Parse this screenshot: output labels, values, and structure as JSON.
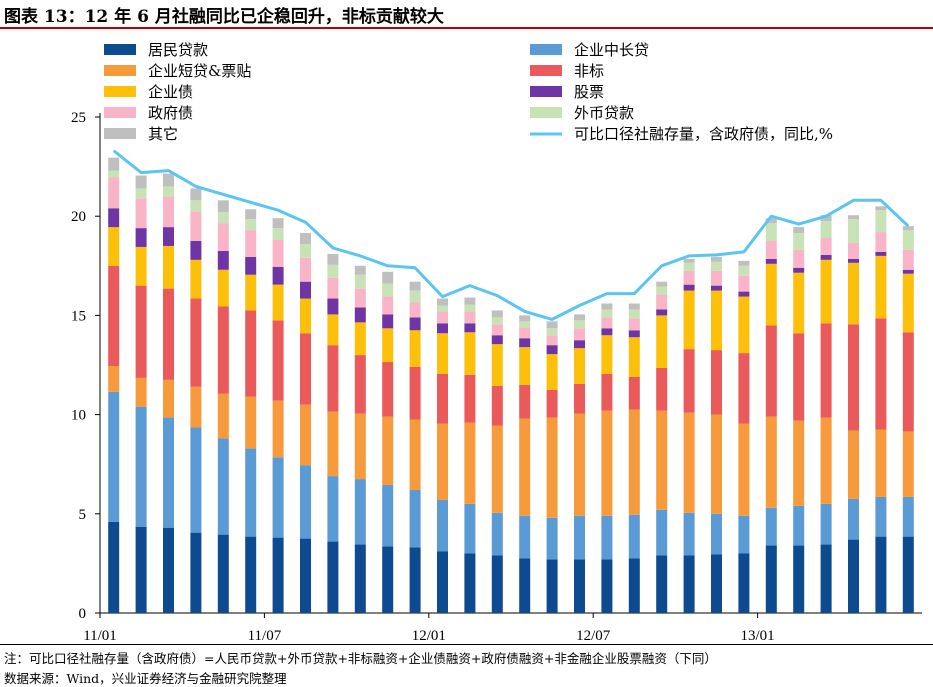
{
  "title": "图表 13：12 年 6 月社融同比已企稳回升，非标贡献较大",
  "footnote": "注：可比口径社融存量（含政府债）=人民币贷款+外币贷款+非标融资+企业债融资+政府债融资+非金融企业股票融资（下同）",
  "source": "数据来源：Wind，兴业证券经济与金融研究院整理",
  "colors": {
    "居民贷款": "#0d4a8f",
    "企业中长贷": "#5b9bd5",
    "企业短贷&票贴": "#f79a3b",
    "非标": "#eb5a5a",
    "企业债": "#fcbf0a",
    "股票": "#6f35a5",
    "政府债": "#f9b4c8",
    "外币贷款": "#c7e3b5",
    "其它": "#bfbfbf",
    "line": "#5bc5f2"
  },
  "chart_data": {
    "type": "bar",
    "stacked": true,
    "categories": [
      "11/01",
      "11/02",
      "11/03",
      "11/04",
      "11/05",
      "11/06",
      "11/07",
      "11/08",
      "11/09",
      "11/10",
      "11/11",
      "11/12",
      "12/01",
      "12/02",
      "12/03",
      "12/04",
      "12/05",
      "12/06",
      "12/07",
      "12/08",
      "12/09",
      "12/10",
      "12/11",
      "12/12",
      "13/01",
      "13/02",
      "13/03",
      "13/04",
      "13/05",
      "13/06"
    ],
    "x_tick_labels": [
      "11/01",
      "11/07",
      "12/01",
      "12/07",
      "13/01"
    ],
    "x_tick_positions": [
      0,
      6,
      12,
      18,
      24
    ],
    "ylim": [
      0,
      25
    ],
    "yticks": [
      0,
      5,
      10,
      15,
      20,
      25
    ],
    "legend_placement": "top",
    "series": [
      {
        "name": "居民贷款",
        "values": [
          4.6,
          4.35,
          4.3,
          4.05,
          3.95,
          3.85,
          3.8,
          3.75,
          3.6,
          3.45,
          3.35,
          3.3,
          3.1,
          3.0,
          2.9,
          2.75,
          2.7,
          2.7,
          2.7,
          2.75,
          2.9,
          2.9,
          2.95,
          3.0,
          3.4,
          3.4,
          3.45,
          3.7,
          3.85,
          3.85
        ]
      },
      {
        "name": "企业中长贷",
        "values": [
          6.55,
          6.05,
          5.55,
          5.3,
          4.85,
          4.45,
          4.05,
          3.7,
          3.3,
          3.3,
          3.1,
          2.9,
          2.6,
          2.5,
          2.15,
          2.15,
          2.1,
          2.2,
          2.2,
          2.2,
          2.3,
          2.15,
          2.05,
          1.9,
          1.9,
          2.0,
          2.05,
          2.05,
          2.0,
          2.0
        ]
      },
      {
        "name": "企业短贷&票贴",
        "values": [
          1.3,
          1.45,
          1.9,
          2.05,
          2.25,
          2.6,
          2.85,
          3.05,
          3.25,
          3.3,
          3.45,
          3.55,
          3.85,
          4.1,
          4.4,
          4.9,
          5.05,
          5.15,
          5.3,
          5.3,
          5.0,
          5.05,
          5.0,
          4.65,
          4.6,
          4.3,
          4.35,
          3.45,
          3.4,
          3.3
        ]
      },
      {
        "name": "非标",
        "values": [
          5.05,
          4.65,
          4.6,
          4.45,
          4.4,
          4.35,
          4.05,
          3.6,
          3.35,
          2.95,
          2.75,
          2.65,
          2.5,
          2.4,
          2.0,
          1.7,
          1.4,
          1.5,
          1.85,
          1.65,
          2.15,
          3.2,
          3.25,
          3.55,
          4.6,
          4.4,
          4.75,
          5.35,
          5.6,
          5.0
        ]
      },
      {
        "name": "企业债",
        "values": [
          1.95,
          1.95,
          2.15,
          1.95,
          1.85,
          1.8,
          1.8,
          1.75,
          1.55,
          1.65,
          1.7,
          1.85,
          2.05,
          2.15,
          2.1,
          1.9,
          1.8,
          1.8,
          1.95,
          2.0,
          2.65,
          2.95,
          3.0,
          2.85,
          3.1,
          3.05,
          3.2,
          3.1,
          3.15,
          2.95
        ]
      },
      {
        "name": "股票",
        "values": [
          0.95,
          0.95,
          0.95,
          0.95,
          0.95,
          0.9,
          0.9,
          0.85,
          0.8,
          0.75,
          0.7,
          0.65,
          0.5,
          0.45,
          0.45,
          0.45,
          0.45,
          0.4,
          0.35,
          0.35,
          0.3,
          0.3,
          0.25,
          0.25,
          0.25,
          0.25,
          0.25,
          0.2,
          0.2,
          0.2
        ]
      },
      {
        "name": "政府债",
        "values": [
          1.55,
          1.5,
          1.55,
          1.5,
          1.4,
          1.35,
          1.35,
          1.2,
          1.05,
          0.95,
          0.9,
          0.75,
          0.6,
          0.6,
          0.55,
          0.55,
          0.5,
          0.6,
          0.55,
          0.6,
          0.75,
          0.7,
          0.75,
          0.8,
          0.9,
          0.9,
          0.85,
          0.8,
          1.0,
          1.0
        ]
      },
      {
        "name": "外币贷款",
        "values": [
          0.35,
          0.5,
          0.5,
          0.55,
          0.55,
          0.55,
          0.6,
          0.7,
          0.65,
          0.7,
          0.65,
          0.6,
          0.3,
          0.35,
          0.35,
          0.3,
          0.35,
          0.4,
          0.4,
          0.45,
          0.4,
          0.4,
          0.45,
          0.5,
          0.9,
          0.85,
          0.85,
          1.2,
          1.1,
          1.0
        ]
      },
      {
        "name": "其它",
        "values": [
          0.65,
          0.65,
          0.65,
          0.6,
          0.6,
          0.5,
          0.5,
          0.55,
          0.55,
          0.45,
          0.6,
          0.45,
          0.35,
          0.35,
          0.35,
          0.3,
          0.35,
          0.3,
          0.3,
          0.3,
          0.25,
          0.2,
          0.25,
          0.25,
          0.25,
          0.3,
          0.3,
          0.2,
          0.2,
          0.2
        ]
      }
    ],
    "line": {
      "name": "可比口径社融存量，含政府债，同比,%",
      "values": [
        23.3,
        22.2,
        22.3,
        21.5,
        21.1,
        20.7,
        20.3,
        19.7,
        18.4,
        18.0,
        17.5,
        17.4,
        15.95,
        16.5,
        16.0,
        15.2,
        14.8,
        15.5,
        16.1,
        16.1,
        17.5,
        18.0,
        18.05,
        18.2,
        20.0,
        19.6,
        20.0,
        20.8,
        20.8,
        19.5
      ]
    }
  }
}
